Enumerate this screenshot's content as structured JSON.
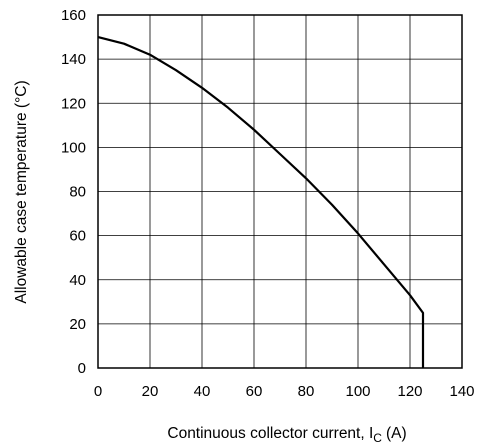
{
  "chart_data": {
    "type": "line",
    "xlabel": "Continuous collector current, I",
    "xlabel_subscript": "C",
    "xlabel_unit": "(A)",
    "ylabel": "Allowable case temperature (°C)",
    "xlim": [
      0,
      140
    ],
    "ylim": [
      0,
      160
    ],
    "xticks": [
      0,
      20,
      40,
      60,
      80,
      100,
      120,
      140
    ],
    "yticks": [
      0,
      20,
      40,
      60,
      80,
      100,
      120,
      140,
      160
    ],
    "x_tick_labels": [
      "0",
      "20",
      "40",
      "60",
      "80",
      "100",
      "120",
      "140"
    ],
    "y_tick_labels": [
      "0",
      "20",
      "40",
      "60",
      "80",
      "100",
      "120",
      "140",
      "160"
    ],
    "grid": true,
    "series": [
      {
        "x": [
          0,
          10,
          20,
          30,
          40,
          50,
          60,
          70,
          80,
          90,
          100,
          110,
          120,
          125,
          125
        ],
        "y": [
          150,
          147,
          142,
          135,
          127,
          118,
          108,
          97,
          86,
          74,
          61,
          47,
          33,
          25,
          0
        ],
        "color": "#000000"
      }
    ]
  }
}
